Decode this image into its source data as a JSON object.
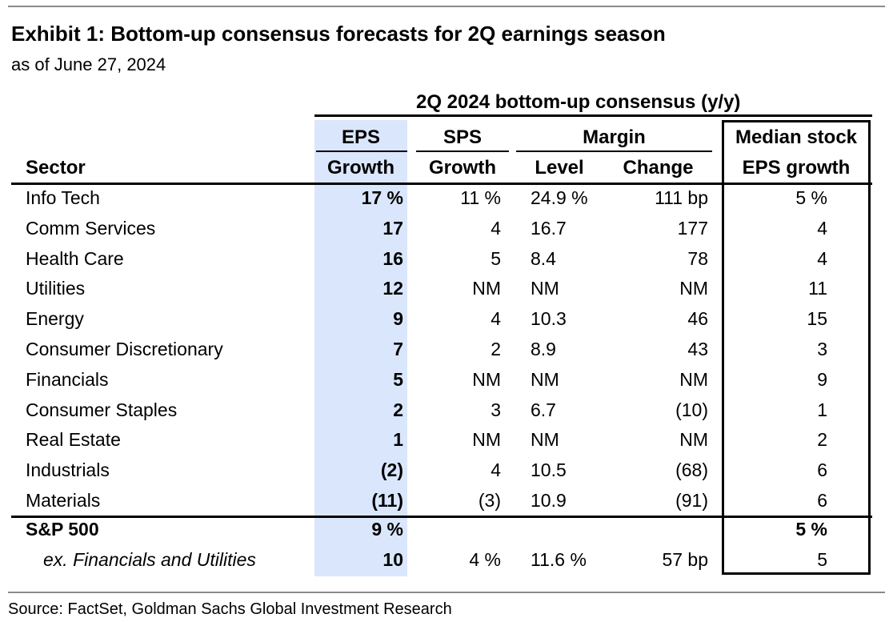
{
  "title": "Exhibit 1: Bottom-up consensus forecasts for 2Q earnings season",
  "subtitle": "as of June 27, 2024",
  "source": "Source: FactSet, Goldman Sachs Global Investment Research",
  "header": {
    "group": "2Q 2024 bottom-up consensus (y/y)",
    "sector": "Sector",
    "eps_top": "EPS",
    "eps_bottom": "Growth",
    "sps_top": "SPS",
    "sps_bottom": "Growth",
    "margin_top": "Margin",
    "level": "Level",
    "change": "Change",
    "median_top": "Median stock",
    "median_bottom": "EPS growth"
  },
  "colors": {
    "eps_shade": "#dae6fb",
    "rule_gray": "#8a8a8a"
  },
  "rows": [
    {
      "sector": "Info Tech",
      "eps": "17 %",
      "sps": "11 %",
      "level": "24.9 %",
      "change": "111 bp",
      "median": "5 %"
    },
    {
      "sector": "Comm Services",
      "eps": "17",
      "sps": "4",
      "level": "16.7",
      "change": "177",
      "median": "4"
    },
    {
      "sector": "Health Care",
      "eps": "16",
      "sps": "5",
      "level": "8.4",
      "change": "78",
      "median": "4"
    },
    {
      "sector": "Utilities",
      "eps": "12",
      "sps": "NM",
      "level": "NM",
      "change": "NM",
      "median": "11"
    },
    {
      "sector": "Energy",
      "eps": "9",
      "sps": "4",
      "level": "10.3",
      "change": "46",
      "median": "15"
    },
    {
      "sector": "Consumer Discretionary",
      "eps": "7",
      "sps": "2",
      "level": "8.9",
      "change": "43",
      "median": "3"
    },
    {
      "sector": "Financials",
      "eps": "5",
      "sps": "NM",
      "level": "NM",
      "change": "NM",
      "median": "9"
    },
    {
      "sector": "Consumer Staples",
      "eps": "2",
      "sps": "3",
      "level": "6.7",
      "change": "(10)",
      "median": "1"
    },
    {
      "sector": "Real Estate",
      "eps": "1",
      "sps": "NM",
      "level": "NM",
      "change": "NM",
      "median": "2"
    },
    {
      "sector": "Industrials",
      "eps": "(2)",
      "sps": "4",
      "level": "10.5",
      "change": "(68)",
      "median": "6"
    },
    {
      "sector": "Materials",
      "eps": "(11)",
      "sps": "(3)",
      "level": "10.9",
      "change": "(91)",
      "median": "6"
    }
  ],
  "totals": [
    {
      "sector": "S&P 500",
      "eps": "9 %",
      "sps": "",
      "level": "",
      "change": "",
      "median": "5 %"
    },
    {
      "sector": "ex. Financials and Utilities",
      "eps": "10",
      "sps": "4 %",
      "level": "11.6 %",
      "change": "57 bp",
      "median": "5"
    }
  ]
}
